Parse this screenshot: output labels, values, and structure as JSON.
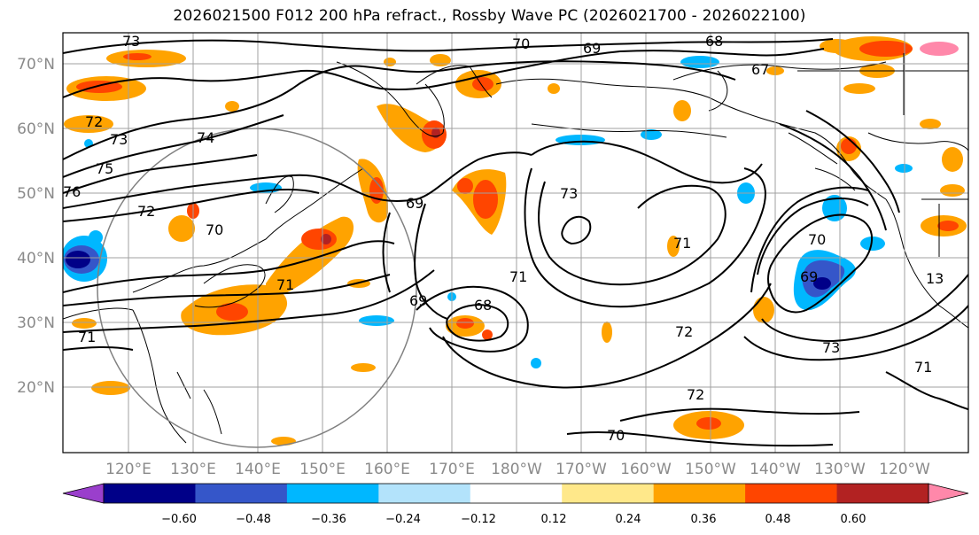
{
  "title": "2026021500 F012 200 hPa refract., Rossby Wave PC (2026021700 - 2026022100)",
  "lat_labels": [
    "70°N",
    "60°N",
    "50°N",
    "40°N",
    "30°N",
    "20°N"
  ],
  "lon_labels": [
    "120°E",
    "130°E",
    "140°E",
    "150°E",
    "160°E",
    "170°E",
    "180°W",
    "170°W",
    "160°W",
    "150°W",
    "140°W",
    "130°W",
    "120°W"
  ],
  "contour_labels": [
    "73",
    "70",
    "69",
    "68",
    "67",
    "72",
    "73",
    "74",
    "75",
    "76",
    "72",
    "70",
    "69",
    "69",
    "73",
    "71",
    "71",
    "70",
    "69",
    "72",
    "73",
    "72",
    "71",
    "71",
    "68",
    "70",
    "71",
    "13"
  ],
  "colorbar": {
    "ticks": [
      "−0.60",
      "−0.48",
      "−0.36",
      "−0.24",
      "−0.12",
      "0.12",
      "0.24",
      "0.36",
      "0.48",
      "0.60"
    ],
    "colors": [
      "#9a3fcc",
      "#000088",
      "#3556c9",
      "#00b7ff",
      "#b3e3fb",
      "#ffffff",
      "#ffe88a",
      "#ffa300",
      "#ff4500",
      "#b22222",
      "#ff88aa"
    ]
  },
  "colors": {
    "contour": "#000000",
    "grid": "#a0a0a0",
    "circle": "#808080"
  }
}
